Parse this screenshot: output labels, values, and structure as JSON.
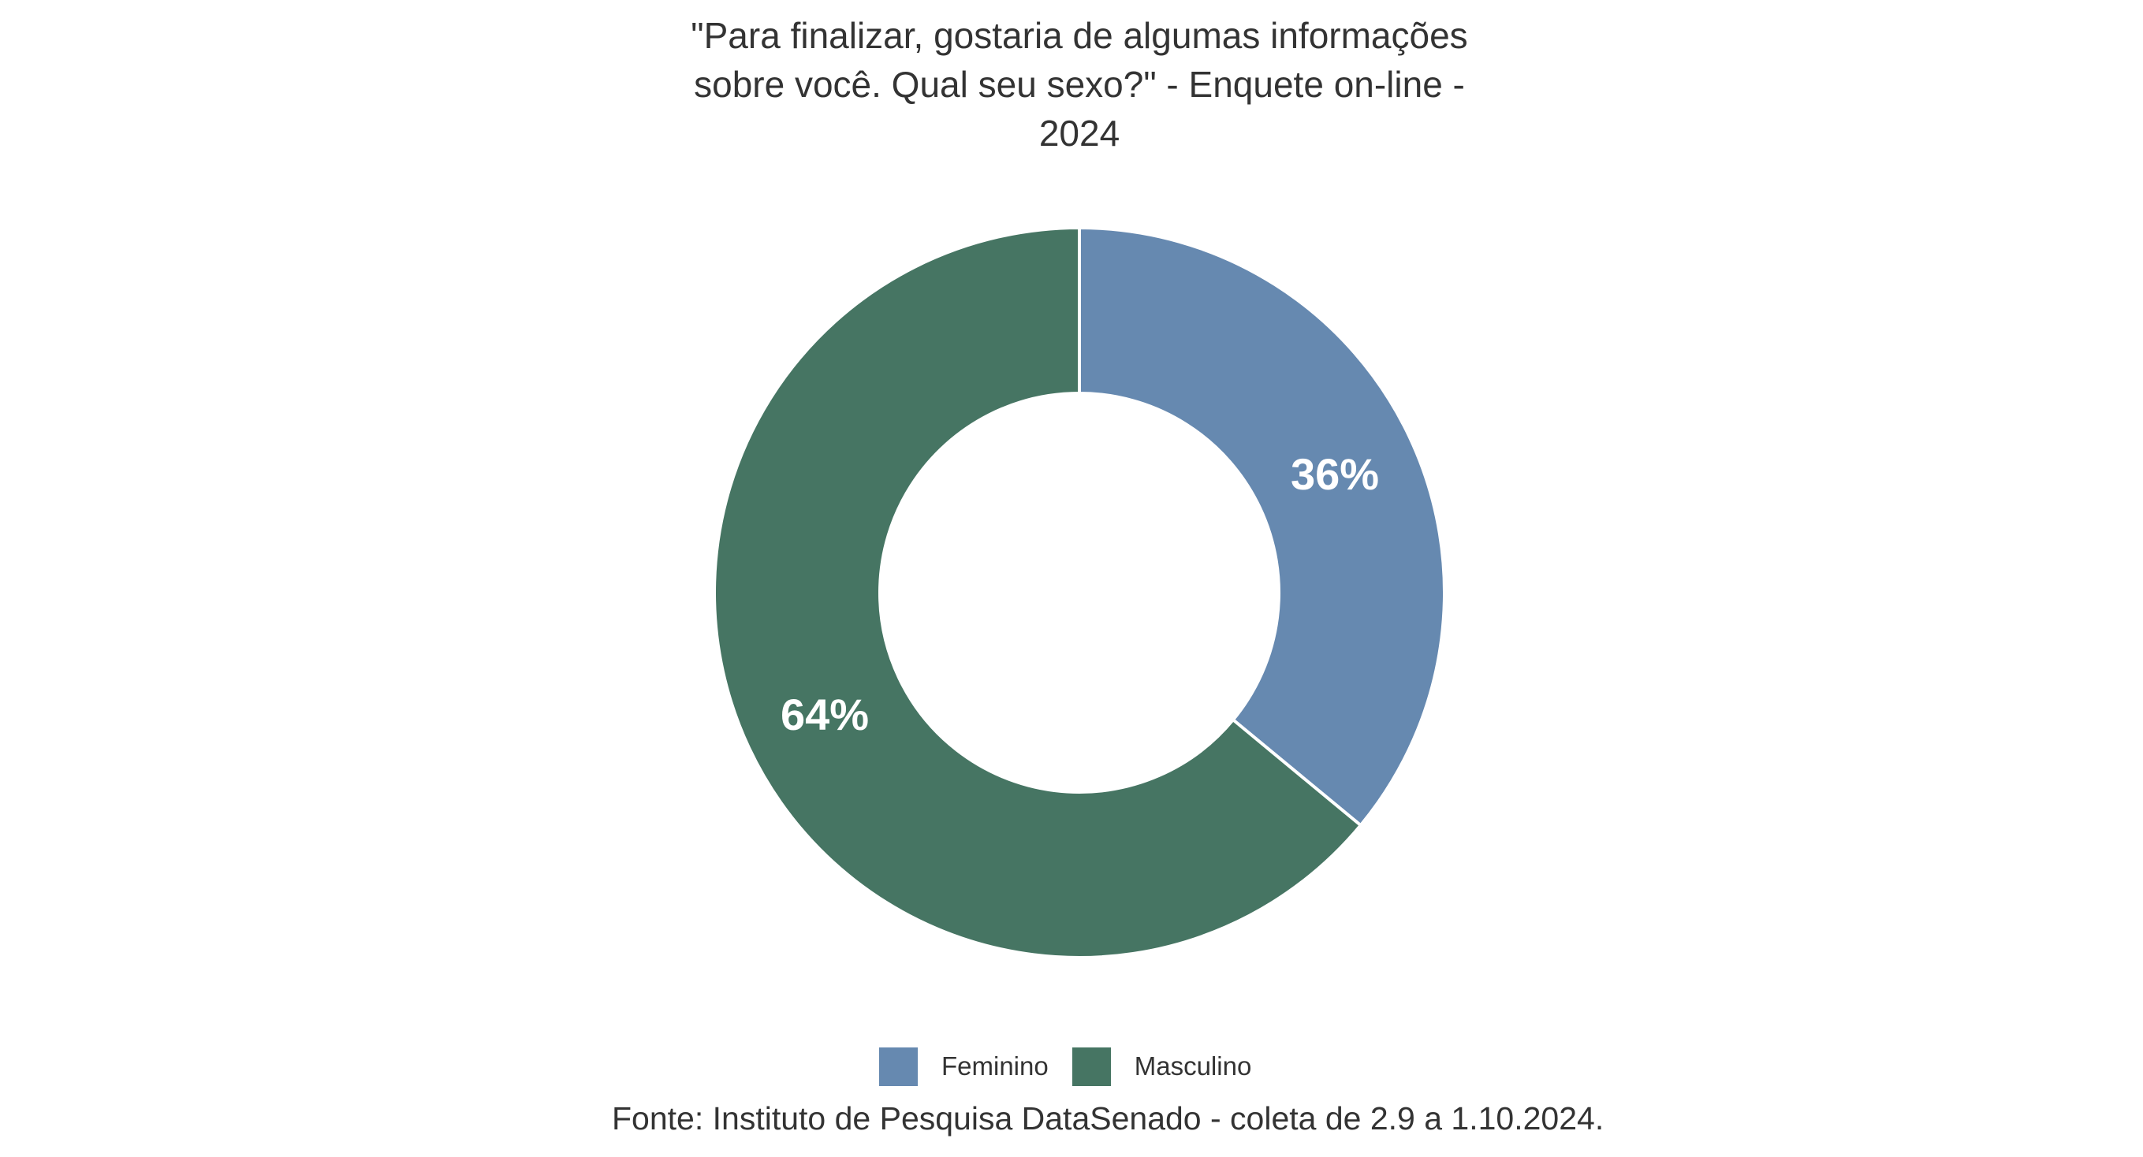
{
  "chart_data": {
    "type": "pie",
    "variant": "donut",
    "title": "\"Para finalizar, gostaria de algumas informações sobre você. Qual seu sexo?\" - Enquete on-line - 2024",
    "title_lines": [
      "\"Para finalizar, gostaria de algumas informações",
      "sobre você. Qual seu sexo?\" - Enquete on-line -",
      "2024"
    ],
    "categories": [
      "Feminino",
      "Masculino"
    ],
    "values": [
      36,
      64
    ],
    "unit": "%",
    "data_labels": [
      "36%",
      "64%"
    ],
    "colors": [
      "#6689b0",
      "#467563"
    ],
    "legend": {
      "position": "bottom",
      "entries": [
        {
          "label": "Feminino",
          "color": "#6689b0"
        },
        {
          "label": "Masculino",
          "color": "#467563"
        }
      ]
    },
    "start_angle_deg": 0,
    "direction": "clockwise",
    "hole_ratio": 0.546,
    "source_note": "Fonte: Instituto de Pesquisa DataSenado - coleta de 2.9 a 1.10.2024."
  },
  "colors": {
    "text": "#333333",
    "label_text": "#ffffff",
    "separator": "#ffffff",
    "background": "#ffffff"
  }
}
